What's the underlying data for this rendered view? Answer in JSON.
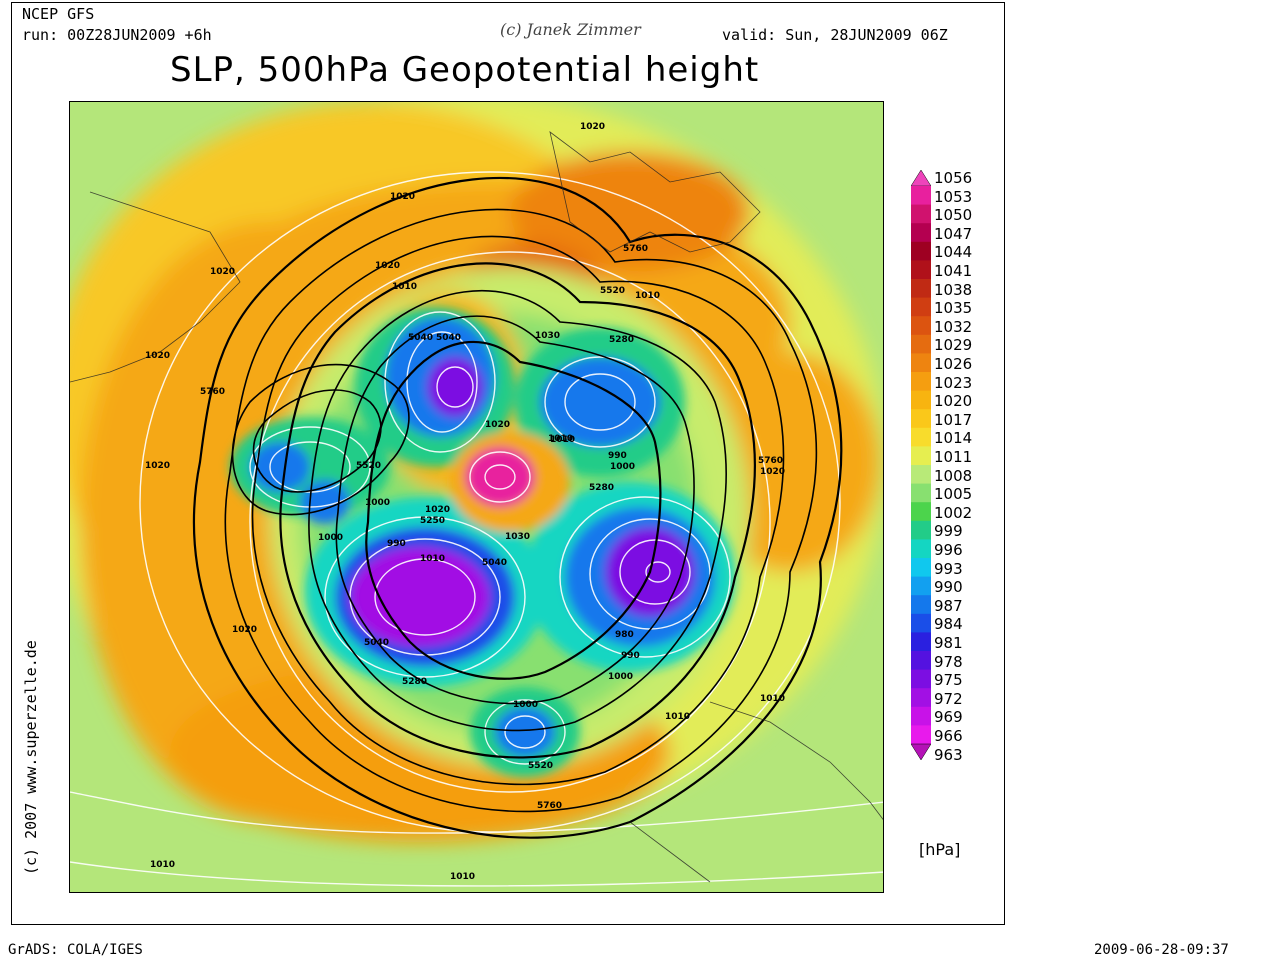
{
  "header": {
    "model": "NCEP GFS",
    "run": "run: 00Z28JUN2009 +6h",
    "credit": "(c) Janek Zimmer",
    "valid": "valid: Sun, 28JUN2009 06Z",
    "title": "SLP, 500hPa Geopotential height"
  },
  "side_text": "(c) 2007 www.superzelle.de",
  "legend": {
    "unit": "[hPa]",
    "levels": [
      {
        "label": "1056",
        "color": "#ee44bb"
      },
      {
        "label": "1053",
        "color": "#e8209e"
      },
      {
        "label": "1050",
        "color": "#d0126e"
      },
      {
        "label": "1047",
        "color": "#b40050"
      },
      {
        "label": "1044",
        "color": "#9e0022"
      },
      {
        "label": "1041",
        "color": "#b0111a"
      },
      {
        "label": "1038",
        "color": "#c02a14"
      },
      {
        "label": "1035",
        "color": "#d03e12"
      },
      {
        "label": "1032",
        "color": "#dc5410"
      },
      {
        "label": "1029",
        "color": "#e56c10"
      },
      {
        "label": "1026",
        "color": "#ee8410"
      },
      {
        "label": "1023",
        "color": "#f59e10"
      },
      {
        "label": "1020",
        "color": "#f8b410"
      },
      {
        "label": "1017",
        "color": "#fac81a"
      },
      {
        "label": "1014",
        "color": "#f8dc2c"
      },
      {
        "label": "1011",
        "color": "#e6ee50"
      },
      {
        "label": "1008",
        "color": "#b8ea78"
      },
      {
        "label": "1005",
        "color": "#88e070"
      },
      {
        "label": "1002",
        "color": "#4cd44c"
      },
      {
        "label": "999",
        "color": "#22cc88"
      },
      {
        "label": "996",
        "color": "#14d6c2"
      },
      {
        "label": "993",
        "color": "#10c8ee"
      },
      {
        "label": "990",
        "color": "#12a0f0"
      },
      {
        "label": "987",
        "color": "#1478ec"
      },
      {
        "label": "984",
        "color": "#1a4ee8"
      },
      {
        "label": "981",
        "color": "#2a20e0"
      },
      {
        "label": "978",
        "color": "#5412e0"
      },
      {
        "label": "975",
        "color": "#7c0ee2"
      },
      {
        "label": "972",
        "color": "#a210e4"
      },
      {
        "label": "969",
        "color": "#c812e8"
      },
      {
        "label": "966",
        "color": "#e81aec"
      },
      {
        "label": "963",
        "color": "#b412b6"
      }
    ]
  },
  "map": {
    "contour_labels_500hpa": [
      "5760",
      "5760",
      "5760",
      "5760",
      "5520",
      "5520",
      "5520",
      "5280",
      "5280",
      "5280",
      "5250",
      "5040",
      "5040",
      "5040",
      "5040"
    ],
    "contour_labels_slp": [
      "1020",
      "1020",
      "1020",
      "1020",
      "1020",
      "1020",
      "1020",
      "1020",
      "1020",
      "1030",
      "1030",
      "1020",
      "1010",
      "1010",
      "1010",
      "1010",
      "1010",
      "1010",
      "1010",
      "1010",
      "1000",
      "1000",
      "1000",
      "1000",
      "1000",
      "990",
      "990",
      "990",
      "980",
      "1010"
    ]
  },
  "footer": {
    "left": "GrADS: COLA/IGES",
    "right": "2009-06-28-09:37"
  }
}
